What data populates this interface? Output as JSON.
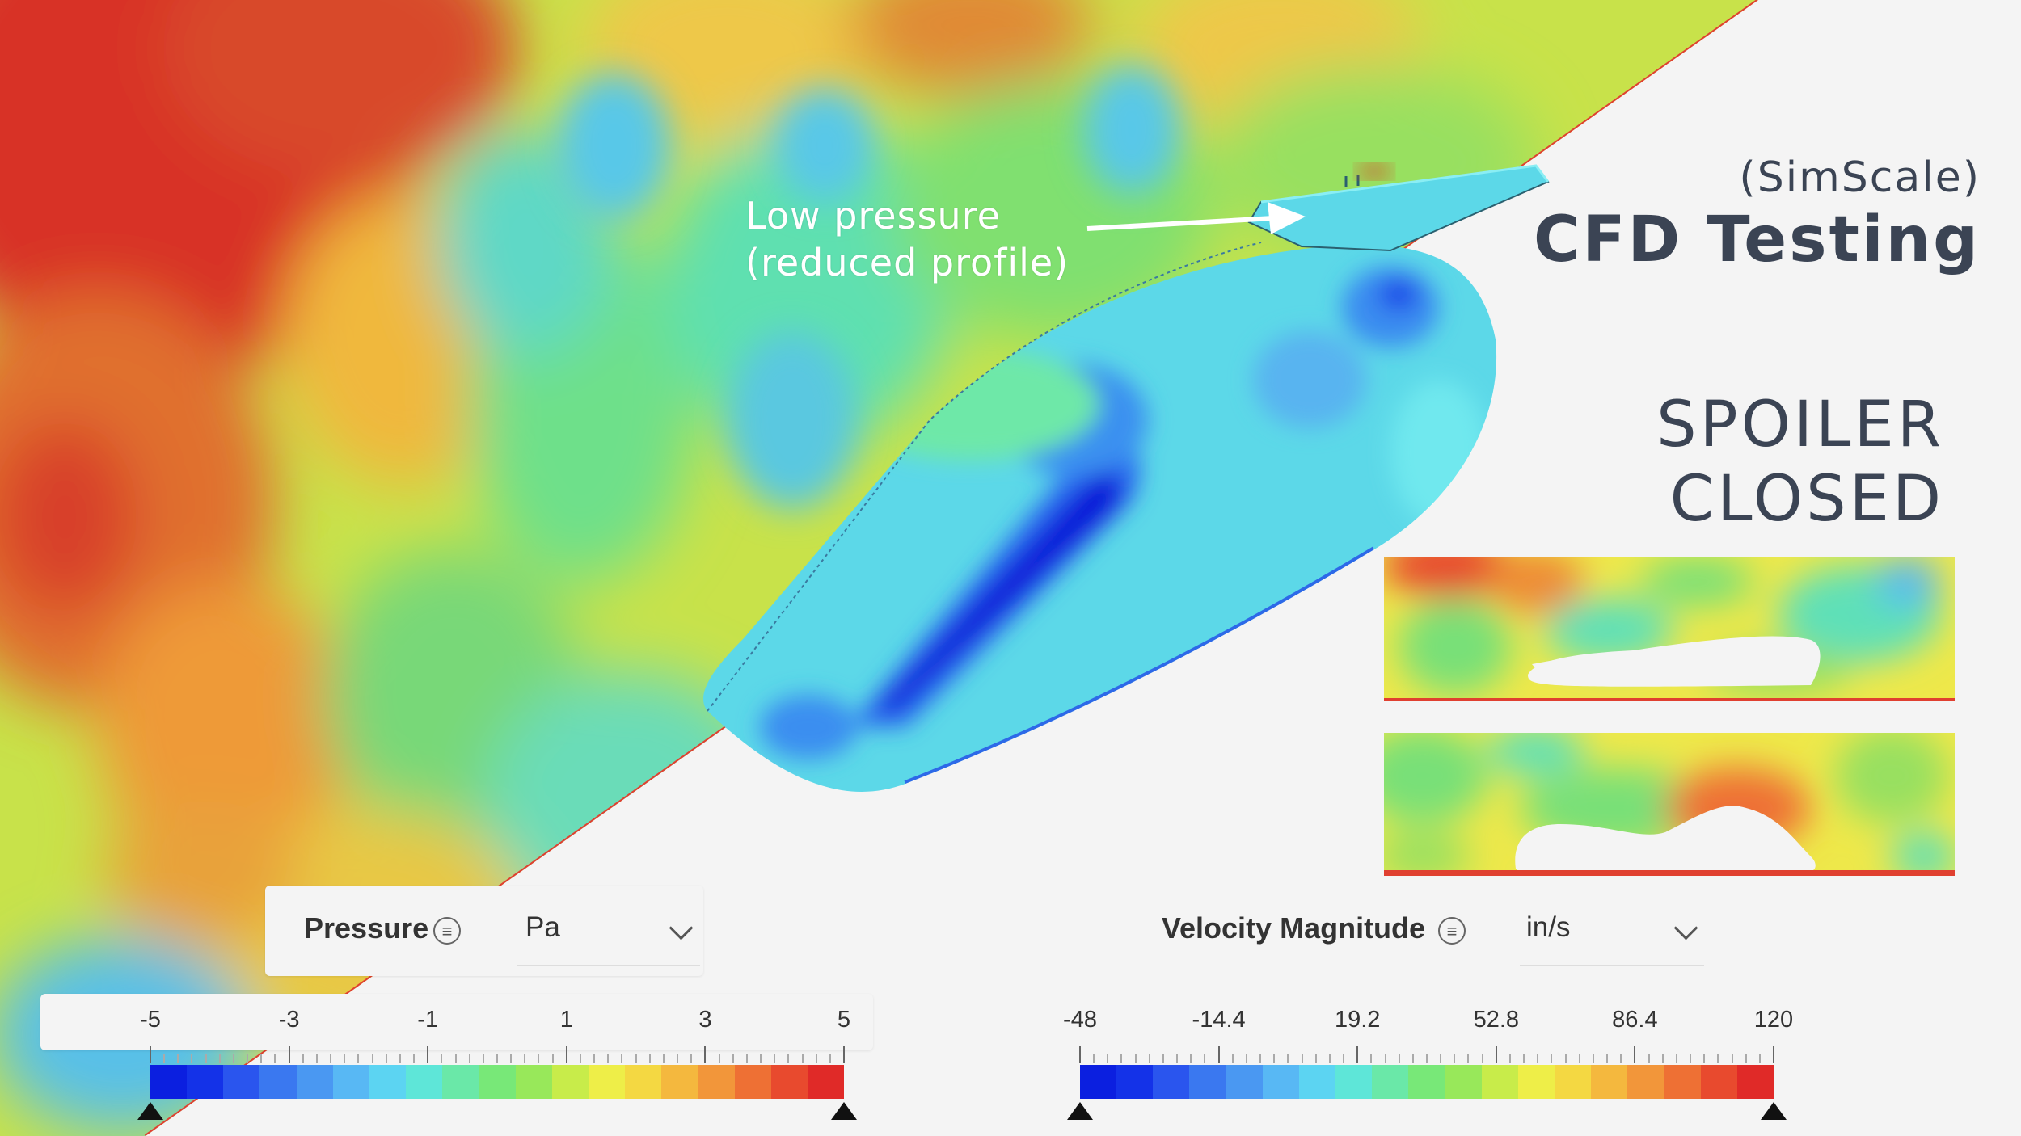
{
  "header": {
    "brand": "(SimScale)",
    "title": "CFD Testing",
    "state_line1": "SPOILER",
    "state_line2": "CLOSED"
  },
  "annotation": {
    "line1": "Low pressure",
    "line2": "(reduced profile)"
  },
  "pressure_legend": {
    "label": "Pressure",
    "unit": "Pa",
    "ticks": [
      "-5",
      "-3",
      "-1",
      "1",
      "3",
      "5"
    ],
    "min": -5,
    "max": 5
  },
  "velocity_legend": {
    "label": "Velocity Magnitude",
    "unit": "in/s",
    "ticks": [
      "-48",
      "-14.4",
      "19.2",
      "52.8",
      "86.4",
      "120"
    ],
    "min": -48,
    "max": 120
  },
  "colors": {
    "scale": [
      "#0b1fe0",
      "#1432e8",
      "#2a55ee",
      "#3a78f0",
      "#4a98f2",
      "#58b8f4",
      "#5cd4f2",
      "#5ee6d8",
      "#6ae8a8",
      "#78e878",
      "#98e85a",
      "#c8ec4a",
      "#eeee48",
      "#f4d842",
      "#f4b83e",
      "#f2963a",
      "#ee7034",
      "#e84a2e",
      "#e02a28"
    ],
    "title_text": "#3b4454",
    "background": "#f4f4f4"
  },
  "icons": {
    "menu": "menu-circle-icon",
    "dropdown": "chevron-down-icon",
    "range_marker": "triangle-marker-icon"
  }
}
